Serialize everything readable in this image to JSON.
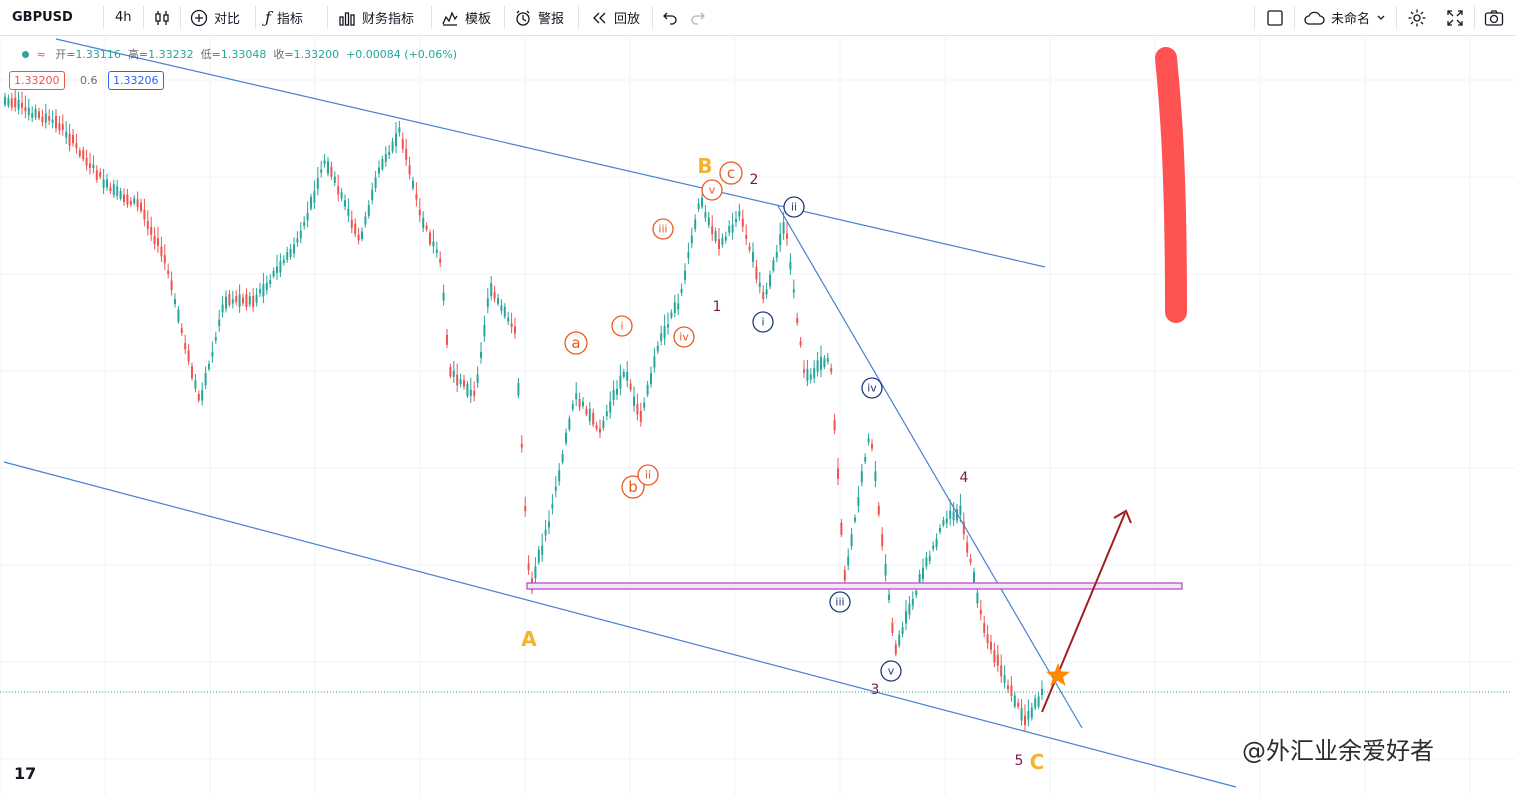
{
  "toolbar": {
    "symbol": "GBPUSD",
    "interval": "4h",
    "compare_label": "对比",
    "indicators_label": "指标",
    "financials_label": "财务指标",
    "templates_label": "模板",
    "alert_label": "警报",
    "replay_label": "回放",
    "layout_name": "未命名"
  },
  "legend": {
    "open_label": "开=",
    "open": "1.33116",
    "high_label": "高=",
    "high": "1.33232",
    "low_label": "低=",
    "low": "1.33048",
    "close_label": "收=",
    "close": "1.33200",
    "change": "+0.00084 (+0.06%)",
    "bid": "1.33200",
    "spread": "0.6",
    "ask": "1.33206"
  },
  "logo": "17",
  "watermark": "@外汇业余爱好者",
  "colors": {
    "up": "#26a69a",
    "down": "#ef5350",
    "channel": "#4a7fd4",
    "wave_orange": "#e8591f",
    "wave_navy": "#1f3a7a",
    "wave_maroon": "#7a1a4a",
    "wave_gold": "#f2b430",
    "zone": "#b63fc6",
    "arrow": "#a02020",
    "marker": "#ff8800",
    "highlighter": "#ff5252"
  },
  "wave_labels": [
    {
      "text": "B",
      "style": "gold"
    },
    {
      "text": "A",
      "style": "gold"
    },
    {
      "text": "C",
      "style": "gold"
    },
    {
      "text": "c",
      "style": "orange-circle"
    },
    {
      "text": "a",
      "style": "orange-circle"
    },
    {
      "text": "b",
      "style": "orange-circle"
    },
    {
      "text": "i",
      "style": "orange-circle-small"
    },
    {
      "text": "ii",
      "style": "orange-circle-small"
    },
    {
      "text": "iii",
      "style": "orange-circle-small"
    },
    {
      "text": "iv",
      "style": "orange-circle-small"
    },
    {
      "text": "v",
      "style": "orange-circle-small"
    },
    {
      "text": "i",
      "style": "navy-circle"
    },
    {
      "text": "ii",
      "style": "navy-circle"
    },
    {
      "text": "iii",
      "style": "navy-circle"
    },
    {
      "text": "iv",
      "style": "navy-circle"
    },
    {
      "text": "v",
      "style": "navy-circle"
    },
    {
      "text": "1",
      "style": "maroon"
    },
    {
      "text": "2",
      "style": "maroon"
    },
    {
      "text": "3",
      "style": "maroon"
    },
    {
      "text": "4",
      "style": "maroon"
    },
    {
      "text": "5",
      "style": "maroon"
    }
  ]
}
